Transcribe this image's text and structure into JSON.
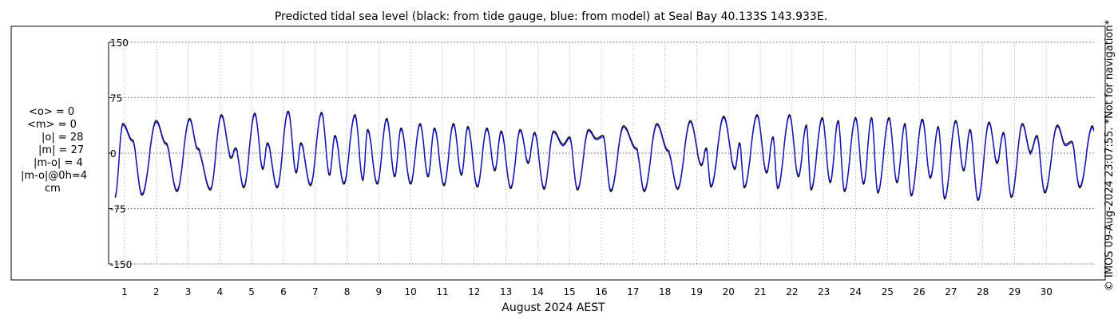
{
  "chart_data": {
    "type": "line",
    "title": "Predicted tidal sea level (black: from tide gauge, blue: from model) at Seal Bay 40.133S 143.933E.",
    "xlabel": "August 2024 AEST",
    "ylabel": "",
    "x_ticks": [
      "1",
      "2",
      "3",
      "4",
      "5",
      "6",
      "7",
      "8",
      "9",
      "10",
      "11",
      "12",
      "13",
      "14",
      "15",
      "16",
      "17",
      "18",
      "19",
      "20",
      "21",
      "22",
      "23",
      "24",
      "25",
      "26",
      "27",
      "28",
      "29",
      "30"
    ],
    "x_range_days": [
      0,
      31
    ],
    "y_ticks": [
      150,
      75,
      0,
      -75,
      -150
    ],
    "y_tick_labels": [
      "150",
      "75",
      "0",
      "-75",
      "-150"
    ],
    "ylim": [
      -150,
      150
    ],
    "grid": true,
    "units": "cm",
    "stats": [
      "<o> = 0",
      "<m> = 0",
      "|o| = 28",
      "|m| = 27",
      "|m-o| = 4",
      "|m-o|@0h=4",
      "cm"
    ],
    "credit": "© IMOS 09-Aug-2024 23:07:55. *Not for navigation*",
    "series": [
      {
        "name": "black: from tide gauge",
        "color": "#000000",
        "offset_cm": 2.0
      },
      {
        "name": "blue: from model",
        "color": "#1414d2",
        "offset_cm": 0.0
      }
    ],
    "tide_extrema": [
      {
        "day": 0.2,
        "value": -58
      },
      {
        "day": 0.45,
        "value": 38
      },
      {
        "day": 0.75,
        "value": 16
      },
      {
        "day": 1.05,
        "value": -55
      },
      {
        "day": 1.5,
        "value": 42
      },
      {
        "day": 1.8,
        "value": 12
      },
      {
        "day": 2.15,
        "value": -50
      },
      {
        "day": 2.55,
        "value": 45
      },
      {
        "day": 2.8,
        "value": 5
      },
      {
        "day": 3.2,
        "value": -48
      },
      {
        "day": 3.55,
        "value": 50
      },
      {
        "day": 3.85,
        "value": -5
      },
      {
        "day": 4.0,
        "value": 5
      },
      {
        "day": 4.25,
        "value": -45
      },
      {
        "day": 4.6,
        "value": 52
      },
      {
        "day": 4.85,
        "value": -20
      },
      {
        "day": 5.0,
        "value": 12
      },
      {
        "day": 5.3,
        "value": -45
      },
      {
        "day": 5.65,
        "value": 55
      },
      {
        "day": 5.9,
        "value": -25
      },
      {
        "day": 6.05,
        "value": 12
      },
      {
        "day": 6.35,
        "value": -42
      },
      {
        "day": 6.7,
        "value": 53
      },
      {
        "day": 6.95,
        "value": -28
      },
      {
        "day": 7.12,
        "value": 22
      },
      {
        "day": 7.4,
        "value": -40
      },
      {
        "day": 7.75,
        "value": 50
      },
      {
        "day": 8.0,
        "value": -35
      },
      {
        "day": 8.15,
        "value": 30
      },
      {
        "day": 8.45,
        "value": -40
      },
      {
        "day": 8.75,
        "value": 45
      },
      {
        "day": 9.0,
        "value": -30
      },
      {
        "day": 9.2,
        "value": 32
      },
      {
        "day": 9.5,
        "value": -40
      },
      {
        "day": 9.8,
        "value": 38
      },
      {
        "day": 10.05,
        "value": -30
      },
      {
        "day": 10.25,
        "value": 32
      },
      {
        "day": 10.55,
        "value": -42
      },
      {
        "day": 10.85,
        "value": 38
      },
      {
        "day": 11.1,
        "value": -28
      },
      {
        "day": 11.3,
        "value": 34
      },
      {
        "day": 11.6,
        "value": -44
      },
      {
        "day": 11.9,
        "value": 32
      },
      {
        "day": 12.15,
        "value": -22
      },
      {
        "day": 12.35,
        "value": 28
      },
      {
        "day": 12.65,
        "value": -46
      },
      {
        "day": 12.95,
        "value": 30
      },
      {
        "day": 13.2,
        "value": -12
      },
      {
        "day": 13.4,
        "value": 26
      },
      {
        "day": 13.7,
        "value": -47
      },
      {
        "day": 14.0,
        "value": 28
      },
      {
        "day": 14.3,
        "value": 10
      },
      {
        "day": 14.5,
        "value": 20
      },
      {
        "day": 14.75,
        "value": -48
      },
      {
        "day": 15.1,
        "value": 30
      },
      {
        "day": 15.35,
        "value": 18
      },
      {
        "day": 15.55,
        "value": 22
      },
      {
        "day": 15.8,
        "value": -50
      },
      {
        "day": 16.2,
        "value": 35
      },
      {
        "day": 16.6,
        "value": 5
      },
      {
        "day": 16.85,
        "value": -50
      },
      {
        "day": 17.25,
        "value": 38
      },
      {
        "day": 17.6,
        "value": 2
      },
      {
        "day": 17.9,
        "value": -47
      },
      {
        "day": 18.3,
        "value": 42
      },
      {
        "day": 18.65,
        "value": -15
      },
      {
        "day": 18.8,
        "value": 5
      },
      {
        "day": 18.95,
        "value": -44
      },
      {
        "day": 19.35,
        "value": 48
      },
      {
        "day": 19.7,
        "value": -20
      },
      {
        "day": 19.85,
        "value": 12
      },
      {
        "day": 20.0,
        "value": -45
      },
      {
        "day": 20.4,
        "value": 50
      },
      {
        "day": 20.7,
        "value": -25
      },
      {
        "day": 20.9,
        "value": 20
      },
      {
        "day": 21.05,
        "value": -46
      },
      {
        "day": 21.42,
        "value": 50
      },
      {
        "day": 21.7,
        "value": -30
      },
      {
        "day": 21.95,
        "value": 36
      },
      {
        "day": 22.1,
        "value": -48
      },
      {
        "day": 22.45,
        "value": 46
      },
      {
        "day": 22.7,
        "value": -38
      },
      {
        "day": 22.95,
        "value": 42
      },
      {
        "day": 23.15,
        "value": -50
      },
      {
        "day": 23.5,
        "value": 46
      },
      {
        "day": 23.75,
        "value": -40
      },
      {
        "day": 24.0,
        "value": 46
      },
      {
        "day": 24.2,
        "value": -52
      },
      {
        "day": 24.55,
        "value": 46
      },
      {
        "day": 24.8,
        "value": -38
      },
      {
        "day": 25.05,
        "value": 38
      },
      {
        "day": 25.25,
        "value": -56
      },
      {
        "day": 25.6,
        "value": 44
      },
      {
        "day": 25.85,
        "value": -32
      },
      {
        "day": 26.1,
        "value": 34
      },
      {
        "day": 26.3,
        "value": -60
      },
      {
        "day": 26.65,
        "value": 42
      },
      {
        "day": 26.9,
        "value": -22
      },
      {
        "day": 27.1,
        "value": 30
      },
      {
        "day": 27.35,
        "value": -62
      },
      {
        "day": 27.7,
        "value": 40
      },
      {
        "day": 27.95,
        "value": -12
      },
      {
        "day": 28.15,
        "value": 26
      },
      {
        "day": 28.4,
        "value": -58
      },
      {
        "day": 28.75,
        "value": 38
      },
      {
        "day": 29.0,
        "value": 0
      },
      {
        "day": 29.2,
        "value": 22
      },
      {
        "day": 29.45,
        "value": -52
      },
      {
        "day": 29.85,
        "value": 36
      },
      {
        "day": 30.1,
        "value": 10
      },
      {
        "day": 30.3,
        "value": 14
      },
      {
        "day": 30.55,
        "value": -45
      },
      {
        "day": 30.95,
        "value": 35
      },
      {
        "day": 31.0,
        "value": 30
      }
    ]
  }
}
